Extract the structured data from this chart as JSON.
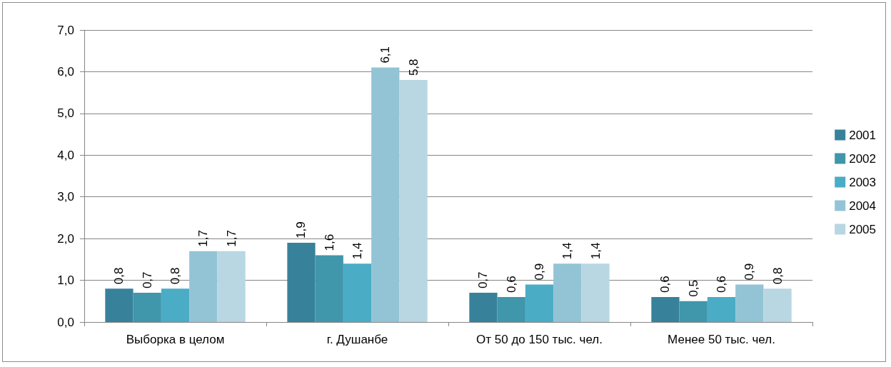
{
  "chart_data": {
    "type": "bar",
    "categories": [
      "Выборка в целом",
      "г. Душанбе",
      "От 50 до 150 тыс. чел.",
      "Менее 50 тыс. чел."
    ],
    "series": [
      {
        "name": "2001",
        "color": "#37829a",
        "values": [
          0.8,
          1.9,
          0.7,
          0.6
        ],
        "value_labels": [
          "0,8",
          "1,9",
          "0,7",
          "0,6"
        ]
      },
      {
        "name": "2002",
        "color": "#4096ab",
        "values": [
          0.7,
          1.6,
          0.6,
          0.5
        ],
        "value_labels": [
          "0,7",
          "1,6",
          "0,6",
          "0,5"
        ]
      },
      {
        "name": "2003",
        "color": "#4bacc6",
        "values": [
          0.8,
          1.4,
          0.9,
          0.6
        ],
        "value_labels": [
          "0,8",
          "1,4",
          "0,9",
          "0,6"
        ]
      },
      {
        "name": "2004",
        "color": "#93c4d6",
        "values": [
          1.7,
          6.1,
          1.4,
          0.9
        ],
        "value_labels": [
          "1,7",
          "6,1",
          "1,4",
          "0,9"
        ]
      },
      {
        "name": "2005",
        "color": "#b8d7e3",
        "values": [
          1.7,
          5.8,
          1.4,
          0.8
        ],
        "value_labels": [
          "1,7",
          "5,8",
          "1,4",
          "0,8"
        ]
      }
    ],
    "ylim": [
      0,
      7
    ],
    "yticks": [
      {
        "value": 0,
        "label": "0,0"
      },
      {
        "value": 1,
        "label": "1,0"
      },
      {
        "value": 2,
        "label": "2,0"
      },
      {
        "value": 3,
        "label": "3,0"
      },
      {
        "value": 4,
        "label": "4,0"
      },
      {
        "value": 5,
        "label": "5,0"
      },
      {
        "value": 6,
        "label": "6,0"
      },
      {
        "value": 7,
        "label": "7,0"
      }
    ],
    "grid": "y",
    "legend": "right"
  }
}
